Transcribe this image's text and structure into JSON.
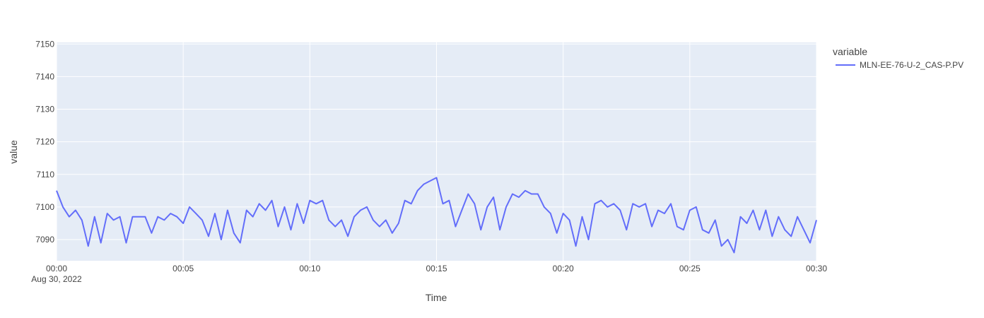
{
  "chart_data": {
    "type": "line",
    "xlabel": "Time",
    "ylabel": "value",
    "x_date_label": "Aug 30, 2022",
    "x_ticks": [
      "00:00",
      "00:05",
      "00:10",
      "00:15",
      "00:20",
      "00:25",
      "00:30"
    ],
    "x_range_minutes": [
      0,
      30
    ],
    "y_ticks": [
      7090,
      7100,
      7110,
      7120,
      7130,
      7140,
      7150
    ],
    "ylim": [
      7083.5,
      7150.5
    ],
    "grid": true,
    "legend_title": "variable",
    "legend_position": "right",
    "colors": {
      "plot_bg": "#E5ECF6",
      "grid": "#FFFFFF",
      "line": "#636EFA",
      "text": "#444444"
    },
    "series": [
      {
        "name": "MLN-EE-76-U-2_CAS-P.PV",
        "points": [
          [
            "00:00",
            7105
          ],
          [
            "00:00:15",
            7100
          ],
          [
            "00:00:30",
            7097
          ],
          [
            "00:00:45",
            7099
          ],
          [
            "00:01:00",
            7096
          ],
          [
            "00:01:15",
            7088
          ],
          [
            "00:01:30",
            7097
          ],
          [
            "00:01:45",
            7089
          ],
          [
            "00:02:00",
            7098
          ],
          [
            "00:02:15",
            7096
          ],
          [
            "00:02:30",
            7097
          ],
          [
            "00:02:45",
            7089
          ],
          [
            "00:03:00",
            7097
          ],
          [
            "00:03:15",
            7097
          ],
          [
            "00:03:30",
            7097
          ],
          [
            "00:03:45",
            7092
          ],
          [
            "00:04:00",
            7097
          ],
          [
            "00:04:15",
            7096
          ],
          [
            "00:04:30",
            7098
          ],
          [
            "00:04:45",
            7097
          ],
          [
            "00:05:00",
            7095
          ],
          [
            "00:05:15",
            7100
          ],
          [
            "00:05:30",
            7098
          ],
          [
            "00:05:45",
            7096
          ],
          [
            "00:06:00",
            7091
          ],
          [
            "00:06:15",
            7098
          ],
          [
            "00:06:30",
            7090
          ],
          [
            "00:06:45",
            7099
          ],
          [
            "00:07:00",
            7092
          ],
          [
            "00:07:15",
            7089
          ],
          [
            "00:07:30",
            7099
          ],
          [
            "00:07:45",
            7097
          ],
          [
            "00:08:00",
            7101
          ],
          [
            "00:08:15",
            7099
          ],
          [
            "00:08:30",
            7102
          ],
          [
            "00:08:45",
            7094
          ],
          [
            "00:09:00",
            7100
          ],
          [
            "00:09:15",
            7093
          ],
          [
            "00:09:30",
            7101
          ],
          [
            "00:09:45",
            7095
          ],
          [
            "00:10:00",
            7102
          ],
          [
            "00:10:15",
            7101
          ],
          [
            "00:10:30",
            7102
          ],
          [
            "00:10:45",
            7096
          ],
          [
            "00:11:00",
            7094
          ],
          [
            "00:11:15",
            7096
          ],
          [
            "00:11:30",
            7091
          ],
          [
            "00:11:45",
            7097
          ],
          [
            "00:12:00",
            7099
          ],
          [
            "00:12:15",
            7100
          ],
          [
            "00:12:30",
            7096
          ],
          [
            "00:12:45",
            7094
          ],
          [
            "00:13:00",
            7096
          ],
          [
            "00:13:15",
            7092
          ],
          [
            "00:13:30",
            7095
          ],
          [
            "00:13:45",
            7102
          ],
          [
            "00:14:00",
            7101
          ],
          [
            "00:14:15",
            7105
          ],
          [
            "00:14:30",
            7107
          ],
          [
            "00:14:45",
            7108
          ],
          [
            "00:15:00",
            7109
          ],
          [
            "00:15:15",
            7101
          ],
          [
            "00:15:30",
            7102
          ],
          [
            "00:15:45",
            7094
          ],
          [
            "00:16:00",
            7099
          ],
          [
            "00:16:15",
            7104
          ],
          [
            "00:16:30",
            7101
          ],
          [
            "00:16:45",
            7093
          ],
          [
            "00:17:00",
            7100
          ],
          [
            "00:17:15",
            7103
          ],
          [
            "00:17:30",
            7093
          ],
          [
            "00:17:45",
            7100
          ],
          [
            "00:18:00",
            7104
          ],
          [
            "00:18:15",
            7103
          ],
          [
            "00:18:30",
            7105
          ],
          [
            "00:18:45",
            7104
          ],
          [
            "00:19:00",
            7104
          ],
          [
            "00:19:15",
            7100
          ],
          [
            "00:19:30",
            7098
          ],
          [
            "00:19:45",
            7092
          ],
          [
            "00:20:00",
            7098
          ],
          [
            "00:20:15",
            7096
          ],
          [
            "00:20:30",
            7088
          ],
          [
            "00:20:45",
            7097
          ],
          [
            "00:21:00",
            7090
          ],
          [
            "00:21:15",
            7101
          ],
          [
            "00:21:30",
            7102
          ],
          [
            "00:21:45",
            7100
          ],
          [
            "00:22:00",
            7101
          ],
          [
            "00:22:15",
            7099
          ],
          [
            "00:22:30",
            7093
          ],
          [
            "00:22:45",
            7101
          ],
          [
            "00:23:00",
            7100
          ],
          [
            "00:23:15",
            7101
          ],
          [
            "00:23:30",
            7094
          ],
          [
            "00:23:45",
            7099
          ],
          [
            "00:24:00",
            7098
          ],
          [
            "00:24:15",
            7101
          ],
          [
            "00:24:30",
            7094
          ],
          [
            "00:24:45",
            7093
          ],
          [
            "00:25:00",
            7099
          ],
          [
            "00:25:15",
            7100
          ],
          [
            "00:25:30",
            7093
          ],
          [
            "00:25:45",
            7092
          ],
          [
            "00:26:00",
            7096
          ],
          [
            "00:26:15",
            7088
          ],
          [
            "00:26:30",
            7090
          ],
          [
            "00:26:45",
            7086
          ],
          [
            "00:27:00",
            7097
          ],
          [
            "00:27:15",
            7095
          ],
          [
            "00:27:30",
            7099
          ],
          [
            "00:27:45",
            7093
          ],
          [
            "00:28:00",
            7099
          ],
          [
            "00:28:15",
            7091
          ],
          [
            "00:28:30",
            7097
          ],
          [
            "00:28:45",
            7093
          ],
          [
            "00:29:00",
            7091
          ],
          [
            "00:29:15",
            7097
          ],
          [
            "00:29:30",
            7093
          ],
          [
            "00:29:45",
            7089
          ],
          [
            "00:30:00",
            7096
          ]
        ]
      }
    ]
  }
}
